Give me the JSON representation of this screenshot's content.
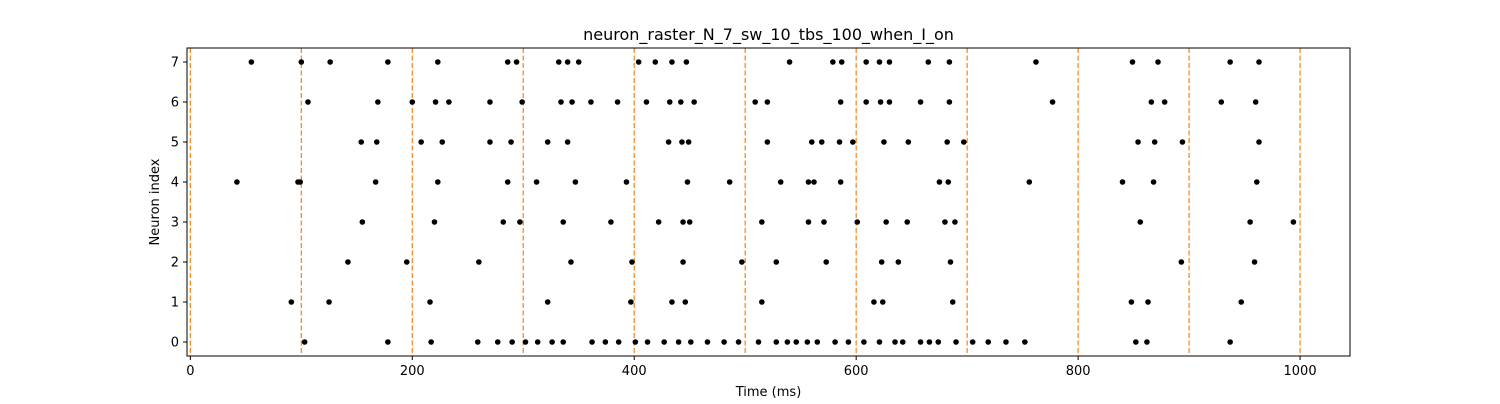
{
  "colors": {
    "spike": "#000000",
    "stim_line": "#ff7f0e",
    "axis": "#000000",
    "background": "#ffffff"
  },
  "chart_data": {
    "type": "scatter",
    "title": "neuron_raster_N_7_sw_10_tbs_100_when_I_on",
    "xlabel": "Time (ms)",
    "ylabel": "Neuron index",
    "xlim": [
      -3,
      1045
    ],
    "ylim": [
      -0.35,
      7.35
    ],
    "xticks": [
      0,
      200,
      400,
      600,
      800,
      1000
    ],
    "xtick_labels": [
      "0",
      "200",
      "400",
      "600",
      "800",
      "1000"
    ],
    "yticks": [
      0,
      1,
      2,
      3,
      4,
      5,
      6,
      7
    ],
    "ytick_labels": [
      "0",
      "1",
      "2",
      "3",
      "4",
      "5",
      "6",
      "7"
    ],
    "grid": false,
    "stim_times": [
      0,
      100,
      200,
      300,
      400,
      500,
      600,
      700,
      800,
      900,
      1000
    ],
    "series": [
      {
        "neuron": 0,
        "times": [
          103,
          178,
          217,
          259,
          277,
          290,
          302,
          313,
          326,
          336,
          362,
          374,
          386,
          401,
          412,
          427,
          440,
          451,
          466,
          481,
          494,
          512,
          528,
          538,
          546,
          556,
          565,
          581,
          593,
          607,
          621,
          635,
          642,
          658,
          666,
          674,
          690,
          705,
          719,
          735,
          752,
          852,
          862,
          937
        ]
      },
      {
        "neuron": 1,
        "times": [
          91,
          125,
          216,
          322,
          397,
          434,
          446,
          515,
          616,
          624,
          687,
          848,
          863,
          947
        ]
      },
      {
        "neuron": 2,
        "times": [
          142,
          195,
          260,
          343,
          398,
          444,
          497,
          528,
          573,
          623,
          638,
          685,
          893,
          959
        ]
      },
      {
        "neuron": 3,
        "times": [
          155,
          220,
          282,
          297,
          336,
          379,
          422,
          444,
          450,
          515,
          557,
          571,
          601,
          627,
          646,
          680,
          689,
          856,
          955,
          994
        ]
      },
      {
        "neuron": 4,
        "times": [
          42,
          97,
          99,
          167,
          223,
          286,
          312,
          347,
          393,
          448,
          486,
          532,
          557,
          562,
          586,
          675,
          683,
          756,
          840,
          868,
          961
        ]
      },
      {
        "neuron": 5,
        "times": [
          154,
          168,
          208,
          227,
          270,
          289,
          322,
          340,
          431,
          443,
          449,
          520,
          560,
          569,
          585,
          597,
          625,
          647,
          682,
          697,
          854,
          869,
          894,
          963
        ]
      },
      {
        "neuron": 6,
        "times": [
          106,
          169,
          200,
          221,
          233,
          270,
          299,
          334,
          344,
          361,
          385,
          411,
          432,
          442,
          454,
          509,
          520,
          586,
          609,
          622,
          630,
          658,
          684,
          777,
          866,
          878,
          929,
          960
        ]
      },
      {
        "neuron": 7,
        "times": [
          55,
          100,
          126,
          178,
          223,
          286,
          294,
          332,
          340,
          350,
          404,
          419,
          434,
          447,
          540,
          579,
          587,
          609,
          621,
          630,
          665,
          684,
          762,
          849,
          872,
          937,
          963
        ]
      }
    ]
  }
}
